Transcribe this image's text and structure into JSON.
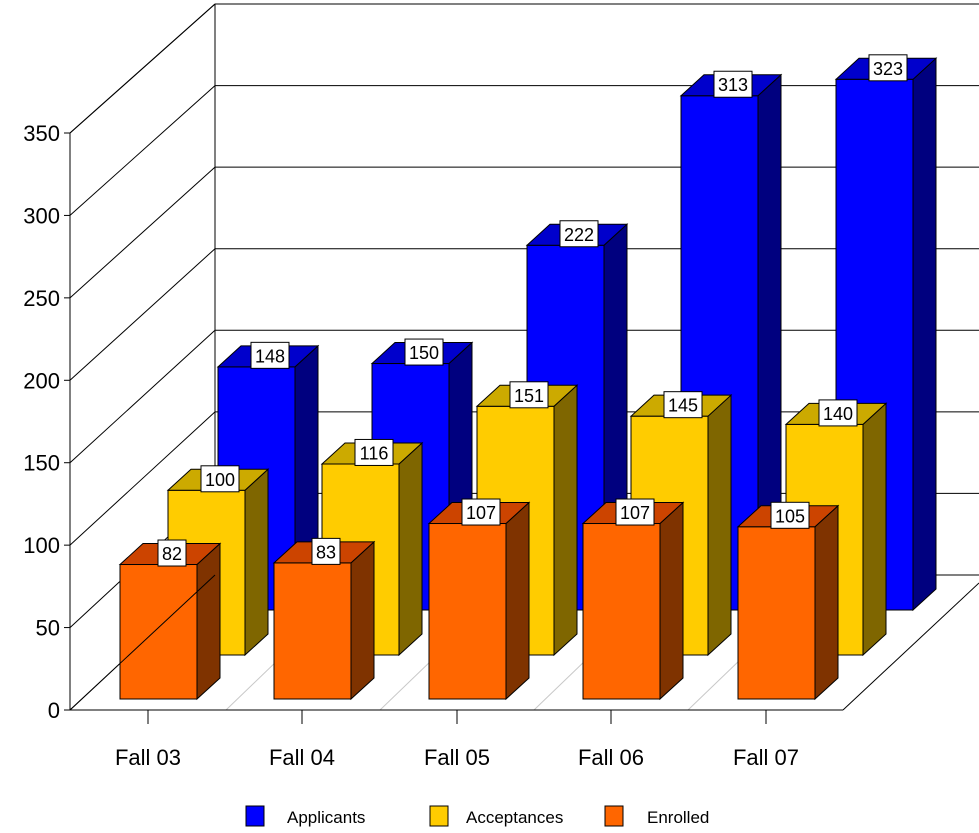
{
  "chart_data": {
    "type": "bar",
    "categories": [
      "Fall 03",
      "Fall 04",
      "Fall 05",
      "Fall 06",
      "Fall 07"
    ],
    "series": [
      {
        "name": "Applicants",
        "values": [
          148,
          150,
          222,
          313,
          323
        ],
        "color": "#0000ff",
        "top_color": "#0000cc",
        "side_color": "#00007f"
      },
      {
        "name": "Acceptances",
        "values": [
          100,
          116,
          151,
          145,
          140
        ],
        "color": "#ffcc00",
        "top_color": "#ccaa00",
        "side_color": "#7f6600"
      },
      {
        "name": "Enrolled",
        "values": [
          82,
          83,
          107,
          107,
          105
        ],
        "color": "#ff6600",
        "top_color": "#cc4400",
        "side_color": "#7f3300"
      }
    ],
    "ylim": [
      0,
      350
    ],
    "yticks": [
      0,
      50,
      100,
      150,
      200,
      250,
      300,
      350
    ],
    "grid": true,
    "legend_position": "bottom",
    "style": "3d"
  }
}
